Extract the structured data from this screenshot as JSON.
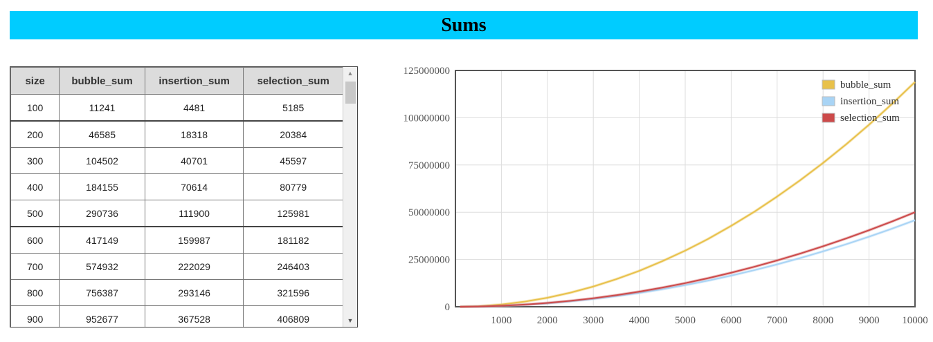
{
  "page": {
    "title": "Sums"
  },
  "table": {
    "columns": [
      "size",
      "bubble_sum",
      "insertion_sum",
      "selection_sum"
    ],
    "rows": [
      [
        "100",
        "11241",
        "4481",
        "5185"
      ],
      [
        "200",
        "46585",
        "18318",
        "20384"
      ],
      [
        "300",
        "104502",
        "40701",
        "45597"
      ],
      [
        "400",
        "184155",
        "70614",
        "80779"
      ],
      [
        "500",
        "290736",
        "111900",
        "125981"
      ],
      [
        "600",
        "417149",
        "159987",
        "181182"
      ],
      [
        "700",
        "574932",
        "222029",
        "246403"
      ],
      [
        "800",
        "756387",
        "293146",
        "321596"
      ],
      [
        "900",
        "952677",
        "367528",
        "406809"
      ]
    ]
  },
  "chart_data": {
    "type": "line",
    "title": "",
    "xlabel": "",
    "ylabel": "",
    "xlim": [
      0,
      10000
    ],
    "ylim": [
      0,
      125000000
    ],
    "x_ticks": [
      1000,
      2000,
      3000,
      4000,
      5000,
      6000,
      7000,
      8000,
      9000,
      10000
    ],
    "y_ticks": [
      0,
      25000000,
      50000000,
      75000000,
      100000000,
      125000000
    ],
    "grid": true,
    "legend_position": "top-right",
    "x": [
      100,
      500,
      1000,
      1500,
      2000,
      2500,
      3000,
      3500,
      4000,
      4500,
      5000,
      5500,
      6000,
      6500,
      7000,
      7500,
      8000,
      8500,
      9000,
      9500,
      10000
    ],
    "series": [
      {
        "name": "bubble_sum",
        "color": "#e8c14b",
        "values": [
          11241,
          290736,
          1190000,
          2680000,
          4760000,
          7440000,
          10700000,
          14600000,
          19000000,
          24100000,
          29700000,
          35900000,
          42800000,
          50200000,
          58300000,
          66900000,
          76100000,
          85900000,
          96300000,
          107300000,
          118900000
        ]
      },
      {
        "name": "insertion_sum",
        "color": "#a9d4f5",
        "values": [
          4481,
          111900,
          460000,
          1030000,
          1830000,
          2860000,
          4120000,
          5610000,
          7320000,
          9270000,
          11450000,
          13850000,
          16480000,
          19340000,
          22430000,
          25750000,
          29300000,
          33070000,
          37080000,
          41310000,
          45780000
        ]
      },
      {
        "name": "selection_sum",
        "color": "#cc4a4a",
        "values": [
          5185,
          125981,
          500000,
          1130000,
          2000000,
          3130000,
          4500000,
          6130000,
          8000000,
          10130000,
          12500000,
          15130000,
          18000000,
          21130000,
          24500000,
          28130000,
          32000000,
          36130000,
          40500000,
          45130000,
          50000000
        ]
      }
    ]
  }
}
